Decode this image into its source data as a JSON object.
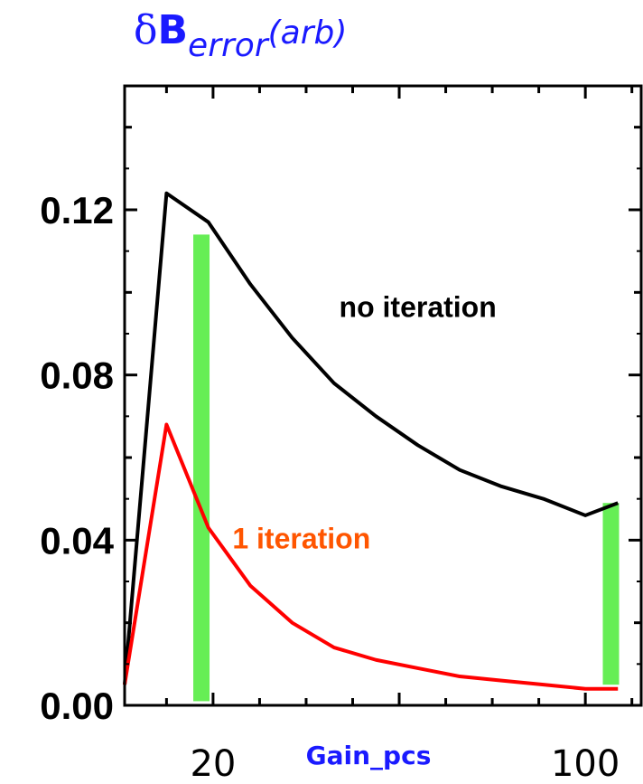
{
  "chart_data": {
    "type": "line",
    "title": {
      "delta": "δ",
      "main": "B",
      "subscript": "error",
      "suffix": "(arb)"
    },
    "xlabel": "Gain_pcs",
    "ylabel": "",
    "xlim": [
      1,
      112
    ],
    "ylim": [
      0.0,
      0.15
    ],
    "x_ticks": [
      20,
      100
    ],
    "x_tick_labels": [
      "20",
      "100"
    ],
    "y_ticks": [
      0.0,
      0.04,
      0.08,
      0.12
    ],
    "y_tick_labels": [
      "0.00",
      "0.04",
      "0.08",
      "0.12"
    ],
    "series": [
      {
        "name": "no iteration",
        "color": "#000000",
        "x": [
          1,
          10,
          19,
          28,
          37,
          46,
          55,
          64,
          73,
          82,
          91,
          100,
          107
        ],
        "y": [
          0.005,
          0.124,
          0.117,
          0.102,
          0.089,
          0.078,
          0.07,
          0.063,
          0.057,
          0.053,
          0.05,
          0.046,
          0.049
        ]
      },
      {
        "name": "1 iteration",
        "color": "#ff0000",
        "x": [
          1,
          10,
          19,
          28,
          37,
          46,
          55,
          64,
          73,
          82,
          91,
          100,
          107
        ],
        "y": [
          0.005,
          0.068,
          0.043,
          0.029,
          0.02,
          0.014,
          0.011,
          0.009,
          0.007,
          0.006,
          0.005,
          0.004,
          0.004
        ]
      }
    ],
    "highlight_bars": [
      {
        "x": 17.5,
        "y_min": 0.001,
        "y_max": 0.114,
        "color": "#66ee55"
      },
      {
        "x": 105.5,
        "y_min": 0.005,
        "y_max": 0.049,
        "color": "#66ee55"
      }
    ],
    "annotations": [
      {
        "text": "no iteration",
        "color": "#000000",
        "x": 64,
        "y": 0.094
      },
      {
        "text": "1 iteration",
        "color": "#ff5500",
        "x": 39,
        "y": 0.038
      }
    ],
    "grid": false,
    "legend": "none"
  }
}
